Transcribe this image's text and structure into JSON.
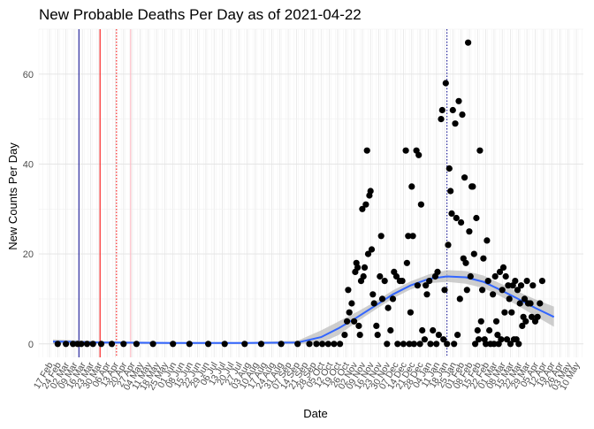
{
  "chart_data": {
    "type": "scatter",
    "title": "New Probable Deaths Per Day as of 2021-04-22",
    "xlabel": "Date",
    "ylabel": "New Counts Per Day",
    "xlim": [
      "2020-02-08",
      "2021-05-16"
    ],
    "ylim": [
      -3,
      70
    ],
    "y_ticks": [
      0,
      20,
      40,
      60
    ],
    "x_ticks": [
      {
        "date": "2020-02-17",
        "label": "17 Feb"
      },
      {
        "date": "2020-02-24",
        "label": "24 Feb"
      },
      {
        "date": "2020-03-02",
        "label": "02 Mar"
      },
      {
        "date": "2020-03-09",
        "label": "09 Mar"
      },
      {
        "date": "2020-03-16",
        "label": "16 Mar"
      },
      {
        "date": "2020-03-23",
        "label": "23 Mar"
      },
      {
        "date": "2020-03-30",
        "label": "30 Mar"
      },
      {
        "date": "2020-04-06",
        "label": "06 Apr"
      },
      {
        "date": "2020-04-13",
        "label": "13 Apr"
      },
      {
        "date": "2020-04-20",
        "label": "20 Apr"
      },
      {
        "date": "2020-04-27",
        "label": "27 Apr"
      },
      {
        "date": "2020-05-04",
        "label": "04 May"
      },
      {
        "date": "2020-05-11",
        "label": "11 May"
      },
      {
        "date": "2020-05-18",
        "label": "18 May"
      },
      {
        "date": "2020-05-25",
        "label": "25 May"
      },
      {
        "date": "2020-06-01",
        "label": "01 Jun"
      },
      {
        "date": "2020-06-08",
        "label": "08 Jun"
      },
      {
        "date": "2020-06-15",
        "label": "15 Jun"
      },
      {
        "date": "2020-06-22",
        "label": "22 Jun"
      },
      {
        "date": "2020-06-29",
        "label": "29 Jun"
      },
      {
        "date": "2020-07-06",
        "label": "06 Jul"
      },
      {
        "date": "2020-07-13",
        "label": "13 Jul"
      },
      {
        "date": "2020-07-20",
        "label": "20 Jul"
      },
      {
        "date": "2020-07-27",
        "label": "27 Jul"
      },
      {
        "date": "2020-08-03",
        "label": "03 Aug"
      },
      {
        "date": "2020-08-10",
        "label": "10 Aug"
      },
      {
        "date": "2020-08-17",
        "label": "17 Aug"
      },
      {
        "date": "2020-08-24",
        "label": "24 Aug"
      },
      {
        "date": "2020-08-31",
        "label": "31 Aug"
      },
      {
        "date": "2020-09-07",
        "label": "07 Sep"
      },
      {
        "date": "2020-09-14",
        "label": "14 Sep"
      },
      {
        "date": "2020-09-21",
        "label": "21 Sep"
      },
      {
        "date": "2020-09-28",
        "label": "28 Sep"
      },
      {
        "date": "2020-10-05",
        "label": "05 Oct"
      },
      {
        "date": "2020-10-12",
        "label": "12 Oct"
      },
      {
        "date": "2020-10-19",
        "label": "19 Oct"
      },
      {
        "date": "2020-10-26",
        "label": "26 Oct"
      },
      {
        "date": "2020-11-02",
        "label": "02 Nov"
      },
      {
        "date": "2020-11-09",
        "label": "09 Nov"
      },
      {
        "date": "2020-11-16",
        "label": "16 Nov"
      },
      {
        "date": "2020-11-23",
        "label": "23 Nov"
      },
      {
        "date": "2020-11-30",
        "label": "30 Nov"
      },
      {
        "date": "2020-12-07",
        "label": "07 Dec"
      },
      {
        "date": "2020-12-14",
        "label": "14 Dec"
      },
      {
        "date": "2020-12-21",
        "label": "21 Dec"
      },
      {
        "date": "2020-12-28",
        "label": "28 Dec"
      },
      {
        "date": "2021-01-04",
        "label": "04 Jan"
      },
      {
        "date": "2021-01-11",
        "label": "11 Jan"
      },
      {
        "date": "2021-01-18",
        "label": "18 Jan"
      },
      {
        "date": "2021-01-25",
        "label": "25 Jan"
      },
      {
        "date": "2021-02-01",
        "label": "01 Feb"
      },
      {
        "date": "2021-02-08",
        "label": "08 Feb"
      },
      {
        "date": "2021-02-15",
        "label": "15 Feb"
      },
      {
        "date": "2021-02-22",
        "label": "22 Feb"
      },
      {
        "date": "2021-03-01",
        "label": "01 Mar"
      },
      {
        "date": "2021-03-08",
        "label": "08 Mar"
      },
      {
        "date": "2021-03-15",
        "label": "15 Mar"
      },
      {
        "date": "2021-03-22",
        "label": "22 Mar"
      },
      {
        "date": "2021-03-29",
        "label": "29 Mar"
      },
      {
        "date": "2021-04-05",
        "label": "05 Apr"
      },
      {
        "date": "2021-04-12",
        "label": "12 Apr"
      },
      {
        "date": "2021-04-19",
        "label": "19 Apr"
      },
      {
        "date": "2021-04-26",
        "label": "26 Apr"
      },
      {
        "date": "2021-05-03",
        "label": "03 May"
      },
      {
        "date": "2021-05-10",
        "label": "10 May"
      }
    ],
    "grid": true,
    "legend": "none",
    "reference_lines": [
      {
        "date": "2020-03-13",
        "color": "#00008b",
        "style": "solid"
      },
      {
        "date": "2020-03-31",
        "color": "#ff0000",
        "style": "solid"
      },
      {
        "date": "2020-04-14",
        "color": "#ff0000",
        "style": "dotted"
      },
      {
        "date": "2020-04-26",
        "color": "#ffb6c1",
        "style": "solid"
      },
      {
        "date": "2021-01-20",
        "color": "#00008b",
        "style": "dotted"
      }
    ],
    "point_color": "#000000",
    "smooth": {
      "color": "#3366ff",
      "band_color": "#bdbdbd",
      "points": [
        {
          "date": "2020-02-20",
          "y": 0.5,
          "lo": 0.0,
          "hi": 1.0
        },
        {
          "date": "2020-03-01",
          "y": 0.5,
          "lo": 0.1,
          "hi": 0.9
        },
        {
          "date": "2020-04-01",
          "y": 0.3,
          "lo": 0.0,
          "hi": 0.6
        },
        {
          "date": "2020-06-01",
          "y": 0.2,
          "lo": 0.0,
          "hi": 0.4
        },
        {
          "date": "2020-08-01",
          "y": 0.2,
          "lo": 0.0,
          "hi": 0.4
        },
        {
          "date": "2020-09-15",
          "y": 0.3,
          "lo": 0.0,
          "hi": 0.7
        },
        {
          "date": "2020-10-05",
          "y": 1.5,
          "lo": 0.2,
          "hi": 3.0
        },
        {
          "date": "2020-10-20",
          "y": 3.5,
          "lo": 2.0,
          "hi": 5.0
        },
        {
          "date": "2020-11-05",
          "y": 6.0,
          "lo": 5.0,
          "hi": 7.2
        },
        {
          "date": "2020-11-20",
          "y": 8.5,
          "lo": 7.6,
          "hi": 9.4
        },
        {
          "date": "2020-12-05",
          "y": 11.0,
          "lo": 10.1,
          "hi": 11.9
        },
        {
          "date": "2020-12-20",
          "y": 13.0,
          "lo": 12.1,
          "hi": 13.9
        },
        {
          "date": "2021-01-05",
          "y": 14.5,
          "lo": 13.5,
          "hi": 15.5
        },
        {
          "date": "2021-01-20",
          "y": 15.0,
          "lo": 13.8,
          "hi": 16.4
        },
        {
          "date": "2021-02-05",
          "y": 14.8,
          "lo": 13.4,
          "hi": 16.2
        },
        {
          "date": "2021-02-20",
          "y": 13.8,
          "lo": 12.4,
          "hi": 15.2
        },
        {
          "date": "2021-03-05",
          "y": 12.2,
          "lo": 10.8,
          "hi": 13.6
        },
        {
          "date": "2021-03-20",
          "y": 10.2,
          "lo": 8.7,
          "hi": 11.8
        },
        {
          "date": "2021-04-05",
          "y": 8.0,
          "lo": 6.2,
          "hi": 9.9
        },
        {
          "date": "2021-04-21",
          "y": 6.0,
          "lo": 3.8,
          "hi": 8.3
        }
      ]
    },
    "points": [
      {
        "date": "2020-02-24",
        "y": 0
      },
      {
        "date": "2020-03-02",
        "y": 0
      },
      {
        "date": "2020-03-08",
        "y": 0
      },
      {
        "date": "2020-03-12",
        "y": 0
      },
      {
        "date": "2020-03-15",
        "y": 0
      },
      {
        "date": "2020-03-20",
        "y": 0
      },
      {
        "date": "2020-03-25",
        "y": 0
      },
      {
        "date": "2020-04-01",
        "y": 0
      },
      {
        "date": "2020-04-10",
        "y": 0
      },
      {
        "date": "2020-04-20",
        "y": 0
      },
      {
        "date": "2020-05-01",
        "y": 0
      },
      {
        "date": "2020-05-15",
        "y": 0
      },
      {
        "date": "2020-06-01",
        "y": 0
      },
      {
        "date": "2020-06-15",
        "y": 0
      },
      {
        "date": "2020-07-01",
        "y": 0
      },
      {
        "date": "2020-07-15",
        "y": 0
      },
      {
        "date": "2020-08-01",
        "y": 0
      },
      {
        "date": "2020-08-15",
        "y": 0
      },
      {
        "date": "2020-09-01",
        "y": 0
      },
      {
        "date": "2020-09-15",
        "y": 0
      },
      {
        "date": "2020-09-25",
        "y": 0
      },
      {
        "date": "2020-10-01",
        "y": 0
      },
      {
        "date": "2020-10-06",
        "y": 0
      },
      {
        "date": "2020-10-11",
        "y": 0
      },
      {
        "date": "2020-10-16",
        "y": 0
      },
      {
        "date": "2020-10-21",
        "y": 0
      },
      {
        "date": "2020-10-25",
        "y": 2
      },
      {
        "date": "2020-10-27",
        "y": 5
      },
      {
        "date": "2020-10-28",
        "y": 12
      },
      {
        "date": "2020-10-29",
        "y": 7
      },
      {
        "date": "2020-10-31",
        "y": 9
      },
      {
        "date": "2020-11-02",
        "y": 5
      },
      {
        "date": "2020-11-03",
        "y": 16
      },
      {
        "date": "2020-11-04",
        "y": 18
      },
      {
        "date": "2020-11-05",
        "y": 17
      },
      {
        "date": "2020-11-06",
        "y": 4
      },
      {
        "date": "2020-11-07",
        "y": 2
      },
      {
        "date": "2020-11-08",
        "y": 14
      },
      {
        "date": "2020-11-09",
        "y": 30
      },
      {
        "date": "2020-11-10",
        "y": 15
      },
      {
        "date": "2020-11-11",
        "y": 17
      },
      {
        "date": "2020-11-12",
        "y": 31
      },
      {
        "date": "2020-11-13",
        "y": 43
      },
      {
        "date": "2020-11-14",
        "y": 20
      },
      {
        "date": "2020-11-15",
        "y": 33
      },
      {
        "date": "2020-11-16",
        "y": 34
      },
      {
        "date": "2020-11-17",
        "y": 21
      },
      {
        "date": "2020-11-18",
        "y": 11
      },
      {
        "date": "2020-11-19",
        "y": 9
      },
      {
        "date": "2020-11-21",
        "y": 4
      },
      {
        "date": "2020-11-22",
        "y": 2
      },
      {
        "date": "2020-11-24",
        "y": 15
      },
      {
        "date": "2020-11-25",
        "y": 24
      },
      {
        "date": "2020-11-26",
        "y": 10
      },
      {
        "date": "2020-11-28",
        "y": 14
      },
      {
        "date": "2020-11-30",
        "y": 0
      },
      {
        "date": "2020-12-01",
        "y": 8
      },
      {
        "date": "2020-12-03",
        "y": 3
      },
      {
        "date": "2020-12-05",
        "y": 10
      },
      {
        "date": "2020-12-06",
        "y": 16
      },
      {
        "date": "2020-12-08",
        "y": 15
      },
      {
        "date": "2020-12-09",
        "y": 0
      },
      {
        "date": "2020-12-11",
        "y": 14
      },
      {
        "date": "2020-12-13",
        "y": 14
      },
      {
        "date": "2020-12-14",
        "y": 0
      },
      {
        "date": "2020-12-16",
        "y": 43
      },
      {
        "date": "2020-12-17",
        "y": 18
      },
      {
        "date": "2020-12-18",
        "y": 24
      },
      {
        "date": "2020-12-19",
        "y": 0
      },
      {
        "date": "2020-12-20",
        "y": 7
      },
      {
        "date": "2020-12-21",
        "y": 35
      },
      {
        "date": "2020-12-22",
        "y": 24
      },
      {
        "date": "2020-12-23",
        "y": 0
      },
      {
        "date": "2020-12-25",
        "y": 43
      },
      {
        "date": "2020-12-26",
        "y": 13
      },
      {
        "date": "2020-12-27",
        "y": 42
      },
      {
        "date": "2020-12-28",
        "y": 0
      },
      {
        "date": "2020-12-29",
        "y": 31
      },
      {
        "date": "2020-12-30",
        "y": 3
      },
      {
        "date": "2021-01-01",
        "y": 1
      },
      {
        "date": "2021-01-02",
        "y": 13
      },
      {
        "date": "2021-01-03",
        "y": 11
      },
      {
        "date": "2021-01-05",
        "y": 14
      },
      {
        "date": "2021-01-06",
        "y": 0
      },
      {
        "date": "2021-01-08",
        "y": 3
      },
      {
        "date": "2021-01-10",
        "y": 15
      },
      {
        "date": "2021-01-11",
        "y": 0
      },
      {
        "date": "2021-01-12",
        "y": 16
      },
      {
        "date": "2021-01-13",
        "y": 2
      },
      {
        "date": "2021-01-15",
        "y": 50
      },
      {
        "date": "2021-01-16",
        "y": 52
      },
      {
        "date": "2021-01-17",
        "y": 1
      },
      {
        "date": "2021-01-18",
        "y": 12
      },
      {
        "date": "2021-01-19",
        "y": 58
      },
      {
        "date": "2021-01-20",
        "y": 0
      },
      {
        "date": "2021-01-21",
        "y": 22
      },
      {
        "date": "2021-01-22",
        "y": 39
      },
      {
        "date": "2021-01-23",
        "y": 34
      },
      {
        "date": "2021-01-24",
        "y": 29
      },
      {
        "date": "2021-01-25",
        "y": 52
      },
      {
        "date": "2021-01-26",
        "y": 0
      },
      {
        "date": "2021-01-27",
        "y": 49
      },
      {
        "date": "2021-01-28",
        "y": 28
      },
      {
        "date": "2021-01-29",
        "y": 2
      },
      {
        "date": "2021-01-30",
        "y": 54
      },
      {
        "date": "2021-01-31",
        "y": 10
      },
      {
        "date": "2021-02-01",
        "y": 27
      },
      {
        "date": "2021-02-02",
        "y": 51
      },
      {
        "date": "2021-02-03",
        "y": 19
      },
      {
        "date": "2021-02-04",
        "y": 37
      },
      {
        "date": "2021-02-05",
        "y": 18
      },
      {
        "date": "2021-02-06",
        "y": 12
      },
      {
        "date": "2021-02-07",
        "y": 67
      },
      {
        "date": "2021-02-08",
        "y": 25
      },
      {
        "date": "2021-02-09",
        "y": 15
      },
      {
        "date": "2021-02-10",
        "y": 35
      },
      {
        "date": "2021-02-11",
        "y": 35
      },
      {
        "date": "2021-02-12",
        "y": 20
      },
      {
        "date": "2021-02-13",
        "y": 0
      },
      {
        "date": "2021-02-14",
        "y": 28
      },
      {
        "date": "2021-02-15",
        "y": 3
      },
      {
        "date": "2021-02-16",
        "y": 1
      },
      {
        "date": "2021-02-17",
        "y": 43
      },
      {
        "date": "2021-02-18",
        "y": 5
      },
      {
        "date": "2021-02-19",
        "y": 12
      },
      {
        "date": "2021-02-20",
        "y": 19
      },
      {
        "date": "2021-02-21",
        "y": 1
      },
      {
        "date": "2021-02-22",
        "y": 0
      },
      {
        "date": "2021-02-23",
        "y": 23
      },
      {
        "date": "2021-02-24",
        "y": 14
      },
      {
        "date": "2021-02-25",
        "y": 3
      },
      {
        "date": "2021-02-26",
        "y": 0
      },
      {
        "date": "2021-02-28",
        "y": 11
      },
      {
        "date": "2021-03-01",
        "y": 0
      },
      {
        "date": "2021-03-02",
        "y": 15
      },
      {
        "date": "2021-03-03",
        "y": 5
      },
      {
        "date": "2021-03-04",
        "y": 2
      },
      {
        "date": "2021-03-05",
        "y": 0
      },
      {
        "date": "2021-03-06",
        "y": 16
      },
      {
        "date": "2021-03-07",
        "y": 1
      },
      {
        "date": "2021-03-08",
        "y": 12
      },
      {
        "date": "2021-03-09",
        "y": 17
      },
      {
        "date": "2021-03-10",
        "y": 7
      },
      {
        "date": "2021-03-11",
        "y": 15
      },
      {
        "date": "2021-03-12",
        "y": 1
      },
      {
        "date": "2021-03-13",
        "y": 13
      },
      {
        "date": "2021-03-14",
        "y": 10
      },
      {
        "date": "2021-03-15",
        "y": 0
      },
      {
        "date": "2021-03-16",
        "y": 7
      },
      {
        "date": "2021-03-17",
        "y": 13
      },
      {
        "date": "2021-03-18",
        "y": 1
      },
      {
        "date": "2021-03-19",
        "y": 14
      },
      {
        "date": "2021-03-20",
        "y": 1
      },
      {
        "date": "2021-03-21",
        "y": 12
      },
      {
        "date": "2021-03-22",
        "y": 0
      },
      {
        "date": "2021-03-23",
        "y": 9
      },
      {
        "date": "2021-03-24",
        "y": 13
      },
      {
        "date": "2021-03-25",
        "y": 4
      },
      {
        "date": "2021-03-26",
        "y": 6
      },
      {
        "date": "2021-03-27",
        "y": 10
      },
      {
        "date": "2021-03-28",
        "y": 5
      },
      {
        "date": "2021-03-29",
        "y": 14
      },
      {
        "date": "2021-03-30",
        "y": 9
      },
      {
        "date": "2021-04-01",
        "y": 9
      },
      {
        "date": "2021-04-02",
        "y": 6
      },
      {
        "date": "2021-04-03",
        "y": 13
      },
      {
        "date": "2021-04-05",
        "y": 5
      },
      {
        "date": "2021-04-07",
        "y": 6
      },
      {
        "date": "2021-04-09",
        "y": 9
      },
      {
        "date": "2021-04-11",
        "y": 14
      }
    ]
  }
}
